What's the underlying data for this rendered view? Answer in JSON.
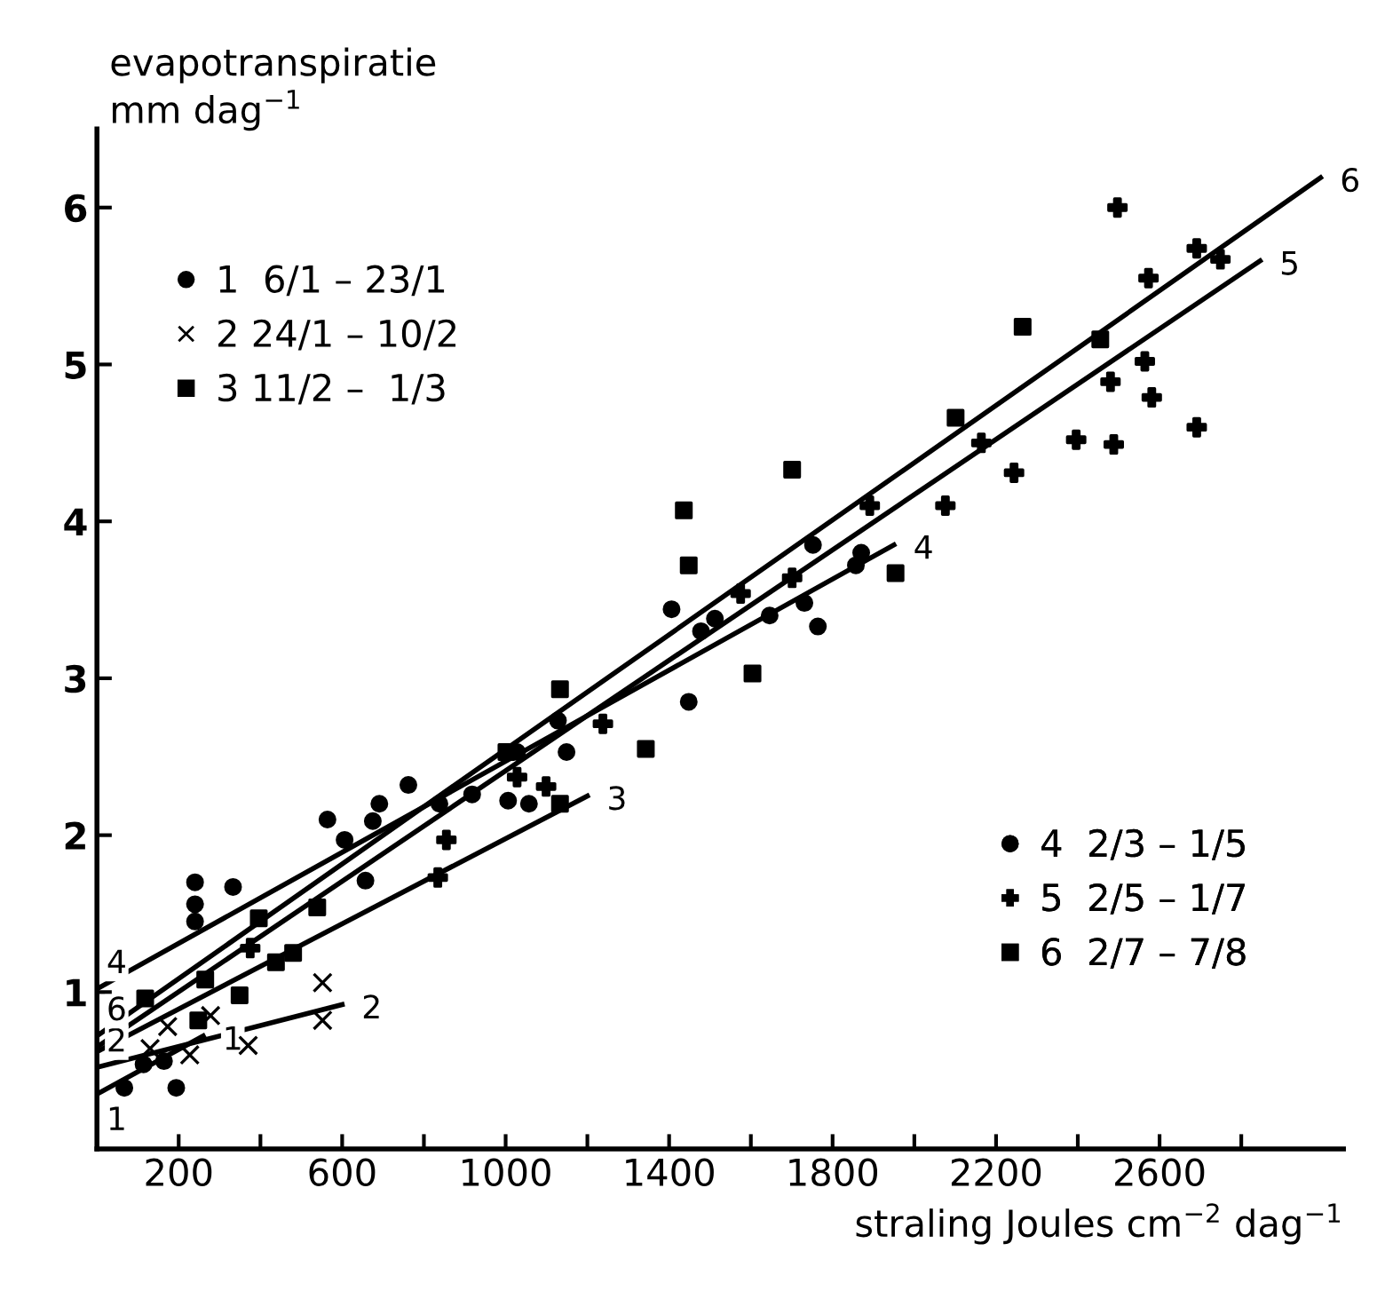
{
  "chart_data": {
    "type": "scatter",
    "xlabel": "straling Joules cm$^{−2}$ dag$^{−1}$",
    "ylabel": "evapotranspiratie\nmm dag$^{−1}$",
    "xlim": [
      0,
      3050
    ],
    "ylim": [
      0,
      6.5
    ],
    "xticks": [
      200,
      {
        "value": 400,
        "label": null
      },
      600,
      {
        "value": 800,
        "label": null
      },
      1000,
      {
        "value": 1200,
        "label": null
      },
      1400,
      {
        "value": 1600,
        "label": null
      },
      1800,
      {
        "value": 2000,
        "label": null
      },
      2200,
      {
        "value": 2400,
        "label": null
      },
      2600,
      {
        "value": 2800,
        "label": null
      }
    ],
    "yticks": [
      1,
      2,
      3,
      4,
      5,
      6
    ],
    "grid": false,
    "legend": [
      "top left",
      "bottom right"
    ],
    "series": [
      {
        "name": "1  6/1 – 23/1",
        "color": "#000000",
        "marker": "circle",
        "x": [
          67,
          114,
          164,
          194
        ],
        "values": [
          0.39,
          0.54,
          0.56,
          0.39
        ]
      },
      {
        "name": "2 24/1 – 10/2",
        "color": "#000000",
        "marker": "x",
        "x": [
          130,
          173,
          227,
          278,
          370,
          552,
          552
        ],
        "values": [
          0.64,
          0.78,
          0.6,
          0.85,
          0.66,
          1.06,
          0.82
        ]
      },
      {
        "name": "3 11/2 –  1/3",
        "color": "#000000",
        "marker": "square",
        "x": [
          118,
          248,
          265,
          349,
          396,
          438,
          480,
          539,
          1133
        ],
        "values": [
          0.96,
          0.82,
          1.08,
          0.98,
          1.47,
          1.19,
          1.25,
          1.54,
          2.2
        ]
      },
      {
        "name": "4  2/3 – 1/5",
        "color": "#000000",
        "marker": "circle",
        "x": [
          240,
          240,
          240,
          333,
          564,
          606,
          657,
          675,
          691,
          762,
          838,
          918,
          1006,
          1028,
          1057,
          1128,
          1149,
          1406,
          1448,
          1478,
          1512,
          1646,
          1731,
          1752,
          1764,
          1857,
          1870
        ],
        "values": [
          1.7,
          1.56,
          1.45,
          1.67,
          2.1,
          1.97,
          1.71,
          2.09,
          2.2,
          2.32,
          2.2,
          2.26,
          2.22,
          2.53,
          2.2,
          2.73,
          2.53,
          3.44,
          2.85,
          3.3,
          3.38,
          3.4,
          3.48,
          3.85,
          3.33,
          3.72,
          3.8
        ]
      },
      {
        "name": "5  2/5 – 1/7",
        "color": "#000000",
        "marker": "plus",
        "x": [
          375,
          834,
          855,
          1028,
          1099,
          1238,
          1575,
          1701,
          1891,
          2076,
          2164,
          2244,
          2396,
          2480,
          2488,
          2497,
          2564,
          2573,
          2581,
          2691,
          2691,
          2749
        ],
        "values": [
          1.28,
          1.73,
          1.97,
          2.37,
          2.31,
          2.71,
          3.54,
          3.64,
          4.1,
          4.1,
          4.5,
          4.31,
          4.52,
          4.89,
          4.49,
          6.0,
          5.02,
          5.55,
          4.79,
          4.6,
          5.74,
          5.67
        ]
      },
      {
        "name": "6  2/7 – 7/8",
        "color": "#000000",
        "marker": "square",
        "x": [
          1002,
          1133,
          1343,
          1436,
          1448,
          1604,
          1701,
          1954,
          2101,
          2265,
          2455
        ],
        "values": [
          2.53,
          2.93,
          2.55,
          4.07,
          3.72,
          3.03,
          4.33,
          3.67,
          4.66,
          5.24,
          5.16
        ]
      },
      {
        "type": "line",
        "color": "#000000",
        "x": [
          0,
          260
        ],
        "values": [
          0.35,
          0.72
        ]
      },
      {
        "type": "line",
        "color": "#000000",
        "x": [
          0,
          600
        ],
        "values": [
          0.52,
          0.92
        ]
      },
      {
        "type": "line",
        "color": "#000000",
        "x": [
          0,
          1200
        ],
        "values": [
          0.62,
          2.25
        ]
      },
      {
        "type": "line",
        "color": "#000000",
        "x": [
          0,
          1950
        ],
        "values": [
          1.02,
          3.85
        ]
      },
      {
        "type": "line",
        "color": "#000000",
        "x": [
          0,
          2846
        ],
        "values": [
          0.65,
          5.66
        ]
      },
      {
        "type": "line",
        "color": "#000000",
        "x": [
          0,
          2994
        ],
        "values": [
          0.72,
          6.19
        ]
      }
    ],
    "annotations": [
      {
        "text": "1",
        "x": 0,
        "y": 0.35
      },
      {
        "text": "2",
        "x": 0,
        "y": 0.52
      },
      {
        "text": "6",
        "x": 0,
        "y": 0.72
      },
      {
        "text": "4",
        "x": 0,
        "y": 1.02
      },
      {
        "text": "1",
        "x": 260,
        "y": 0.72
      },
      {
        "text": "2",
        "x": 600,
        "y": 0.92
      },
      {
        "text": "3",
        "x": 1200,
        "y": 2.25
      },
      {
        "text": "4",
        "x": 1950,
        "y": 3.85
      },
      {
        "text": "5",
        "x": 2846,
        "y": 5.66
      },
      {
        "text": "6",
        "x": 2994,
        "y": 6.19
      }
    ]
  }
}
